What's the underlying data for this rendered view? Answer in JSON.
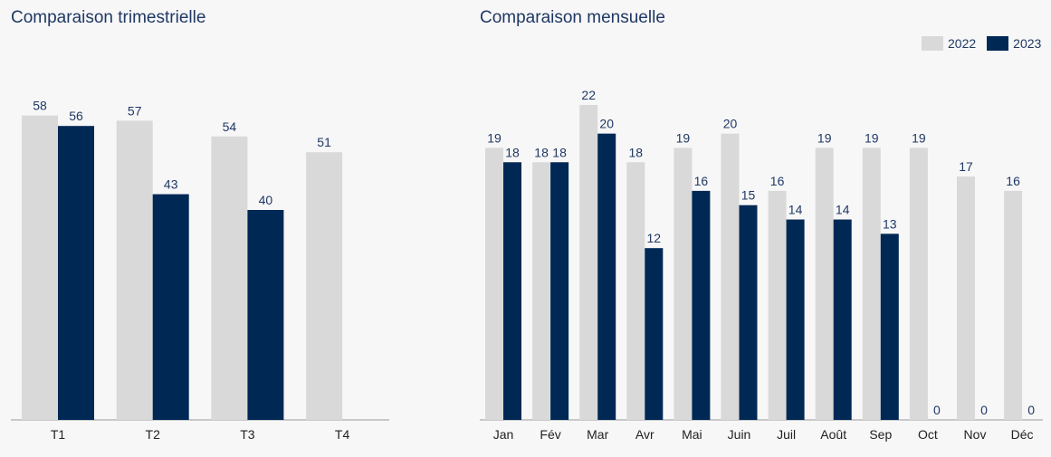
{
  "colors": {
    "y2022": "#d9d9d9",
    "y2023": "#002855",
    "text": "#1f3864",
    "axis": "#9a9a9a"
  },
  "quarterly": {
    "title": "Comparaison trimestrielle"
  },
  "monthly": {
    "title": "Comparaison mensuelle"
  },
  "legend": {
    "s2022": "2022",
    "s2023": "2023"
  },
  "chart_data": [
    {
      "type": "bar",
      "title": "Comparaison trimestrielle",
      "categories": [
        "T1",
        "T2",
        "T3",
        "T4"
      ],
      "series": [
        {
          "name": "2022",
          "values": [
            58,
            57,
            54,
            51
          ]
        },
        {
          "name": "2023",
          "values": [
            56,
            43,
            40,
            null
          ]
        }
      ],
      "ylim": [
        0,
        60
      ],
      "grid": false
    },
    {
      "type": "bar",
      "title": "Comparaison mensuelle",
      "categories": [
        "Jan",
        "Fév",
        "Mar",
        "Avr",
        "Mai",
        "Juin",
        "Juil",
        "Août",
        "Sep",
        "Oct",
        "Nov",
        "Déc"
      ],
      "series": [
        {
          "name": "2022",
          "values": [
            19,
            18,
            22,
            18,
            19,
            20,
            16,
            19,
            19,
            19,
            17,
            16
          ]
        },
        {
          "name": "2023",
          "values": [
            18,
            18,
            20,
            12,
            16,
            15,
            14,
            14,
            13,
            0,
            0,
            0
          ]
        }
      ],
      "ylim": [
        0,
        22
      ],
      "legend": "top-right",
      "grid": false
    }
  ]
}
